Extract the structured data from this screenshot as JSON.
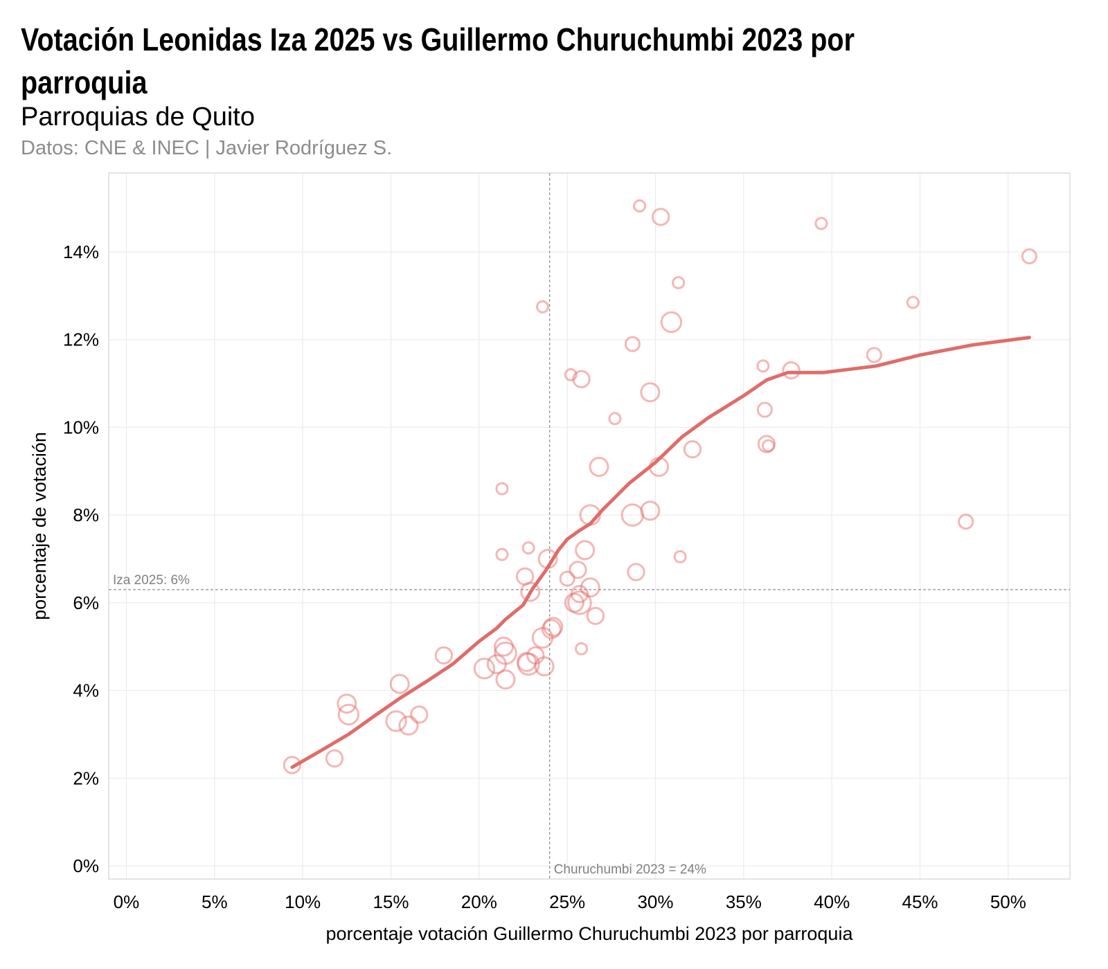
{
  "chart_data": {
    "type": "scatter",
    "title": "Votación Leonidas Iza 2025 vs Guillermo Churuchumbi 2023 por parroquia",
    "subtitle": "Parroquias de Quito",
    "caption": "Datos: CNE & INEC | Javier Rodríguez S.",
    "xlabel": "porcentaje votación Guillermo Churuchumbi 2023 por parroquia",
    "ylabel": "porcentaje de votación",
    "xlim": [
      -1,
      53.5
    ],
    "ylim": [
      -0.3,
      15.8
    ],
    "x_ticks": [
      0,
      5,
      10,
      15,
      20,
      25,
      30,
      35,
      40,
      45,
      50
    ],
    "x_tick_labels": [
      "0%",
      "5%",
      "10%",
      "15%",
      "20%",
      "25%",
      "30%",
      "35%",
      "40%",
      "45%",
      "50%"
    ],
    "y_ticks": [
      0,
      2,
      4,
      6,
      8,
      10,
      12,
      14
    ],
    "y_tick_labels": [
      "0%",
      "2%",
      "4%",
      "6%",
      "8%",
      "10%",
      "12%",
      "14%"
    ],
    "grid": true,
    "colors": {
      "points": "#e8706b",
      "trend": "#e06c68",
      "reference": "#8c8c8c",
      "grid": "#ebebeb",
      "panel_border": "#c8c8c8"
    },
    "reference_lines": {
      "horizontal": {
        "value": 6.3,
        "label": "Iza 2025: 6%"
      },
      "vertical": {
        "value": 24,
        "label": "Churuchumbi 2023 = 24%"
      }
    },
    "points": [
      {
        "x": 9.4,
        "y": 2.3,
        "size": 3
      },
      {
        "x": 11.8,
        "y": 2.45,
        "size": 3
      },
      {
        "x": 12.5,
        "y": 3.7,
        "size": 4
      },
      {
        "x": 12.6,
        "y": 3.45,
        "size": 5
      },
      {
        "x": 15.3,
        "y": 3.3,
        "size": 5
      },
      {
        "x": 15.5,
        "y": 4.15,
        "size": 4
      },
      {
        "x": 16,
        "y": 3.2,
        "size": 4
      },
      {
        "x": 16.6,
        "y": 3.45,
        "size": 3
      },
      {
        "x": 18,
        "y": 4.8,
        "size": 3
      },
      {
        "x": 20.3,
        "y": 4.5,
        "size": 5
      },
      {
        "x": 21,
        "y": 4.6,
        "size": 4
      },
      {
        "x": 21.3,
        "y": 8.6,
        "size": 1
      },
      {
        "x": 21.3,
        "y": 7.1,
        "size": 1
      },
      {
        "x": 21.4,
        "y": 5,
        "size": 4
      },
      {
        "x": 21.5,
        "y": 4.85,
        "size": 6
      },
      {
        "x": 21.5,
        "y": 4.25,
        "size": 4
      },
      {
        "x": 22.6,
        "y": 6.6,
        "size": 3
      },
      {
        "x": 22.7,
        "y": 4.65,
        "size": 4
      },
      {
        "x": 22.8,
        "y": 4.6,
        "size": 6
      },
      {
        "x": 22.8,
        "y": 7.25,
        "size": 1
      },
      {
        "x": 22.9,
        "y": 6.25,
        "size": 4
      },
      {
        "x": 23.2,
        "y": 4.8,
        "size": 3
      },
      {
        "x": 23.6,
        "y": 12.75,
        "size": 1
      },
      {
        "x": 23.6,
        "y": 5.2,
        "size": 5
      },
      {
        "x": 23.7,
        "y": 4.55,
        "size": 4
      },
      {
        "x": 23.9,
        "y": 7,
        "size": 4
      },
      {
        "x": 24.1,
        "y": 5.4,
        "size": 4
      },
      {
        "x": 24.2,
        "y": 5.45,
        "size": 4
      },
      {
        "x": 25,
        "y": 6.55,
        "size": 2
      },
      {
        "x": 25.2,
        "y": 11.2,
        "size": 1
      },
      {
        "x": 25.4,
        "y": 6,
        "size": 4
      },
      {
        "x": 25.6,
        "y": 6.75,
        "size": 3
      },
      {
        "x": 25.7,
        "y": 6.2,
        "size": 3
      },
      {
        "x": 25.7,
        "y": 6,
        "size": 7
      },
      {
        "x": 25.8,
        "y": 4.95,
        "size": 1
      },
      {
        "x": 25.8,
        "y": 11.1,
        "size": 3
      },
      {
        "x": 26,
        "y": 7.2,
        "size": 4
      },
      {
        "x": 26.3,
        "y": 8,
        "size": 5
      },
      {
        "x": 26.3,
        "y": 6.35,
        "size": 4
      },
      {
        "x": 26.6,
        "y": 5.7,
        "size": 3
      },
      {
        "x": 26.8,
        "y": 9.1,
        "size": 4
      },
      {
        "x": 27.7,
        "y": 10.2,
        "size": 1
      },
      {
        "x": 28.7,
        "y": 8,
        "size": 6
      },
      {
        "x": 28.7,
        "y": 11.9,
        "size": 2
      },
      {
        "x": 28.9,
        "y": 6.7,
        "size": 3
      },
      {
        "x": 29.1,
        "y": 15.05,
        "size": 1
      },
      {
        "x": 29.7,
        "y": 10.8,
        "size": 4
      },
      {
        "x": 29.7,
        "y": 8.1,
        "size": 4
      },
      {
        "x": 30.2,
        "y": 9.1,
        "size": 4
      },
      {
        "x": 30.3,
        "y": 14.8,
        "size": 3
      },
      {
        "x": 30.9,
        "y": 12.4,
        "size": 5
      },
      {
        "x": 31.3,
        "y": 13.3,
        "size": 1
      },
      {
        "x": 31.4,
        "y": 7.05,
        "size": 1
      },
      {
        "x": 32.1,
        "y": 9.5,
        "size": 3
      },
      {
        "x": 36.1,
        "y": 11.4,
        "size": 1
      },
      {
        "x": 36.2,
        "y": 10.4,
        "size": 2
      },
      {
        "x": 36.3,
        "y": 9.62,
        "size": 3
      },
      {
        "x": 36.4,
        "y": 9.58,
        "size": 1
      },
      {
        "x": 37.7,
        "y": 11.3,
        "size": 3
      },
      {
        "x": 39.4,
        "y": 14.65,
        "size": 1
      },
      {
        "x": 42.4,
        "y": 11.65,
        "size": 2
      },
      {
        "x": 44.6,
        "y": 12.85,
        "size": 1
      },
      {
        "x": 47.6,
        "y": 7.85,
        "size": 2
      },
      {
        "x": 51.2,
        "y": 13.9,
        "size": 2
      }
    ],
    "trend": {
      "x": [
        9.4,
        11,
        12.6,
        14,
        15.5,
        17,
        18.5,
        20,
        21,
        21.5,
        22.5,
        23,
        23.8,
        24.5,
        25,
        25.7,
        26.3,
        27,
        28.5,
        30,
        31.5,
        33,
        35,
        36.3,
        37.5,
        39.5,
        42.5,
        45,
        48,
        51.2
      ],
      "y": [
        2.25,
        2.62,
        3.0,
        3.4,
        3.82,
        4.2,
        4.6,
        5.12,
        5.42,
        5.62,
        5.95,
        6.3,
        6.75,
        7.2,
        7.45,
        7.65,
        7.8,
        8.12,
        8.72,
        9.2,
        9.78,
        10.22,
        10.72,
        11.08,
        11.25,
        11.25,
        11.4,
        11.65,
        11.88,
        12.05
      ]
    }
  }
}
